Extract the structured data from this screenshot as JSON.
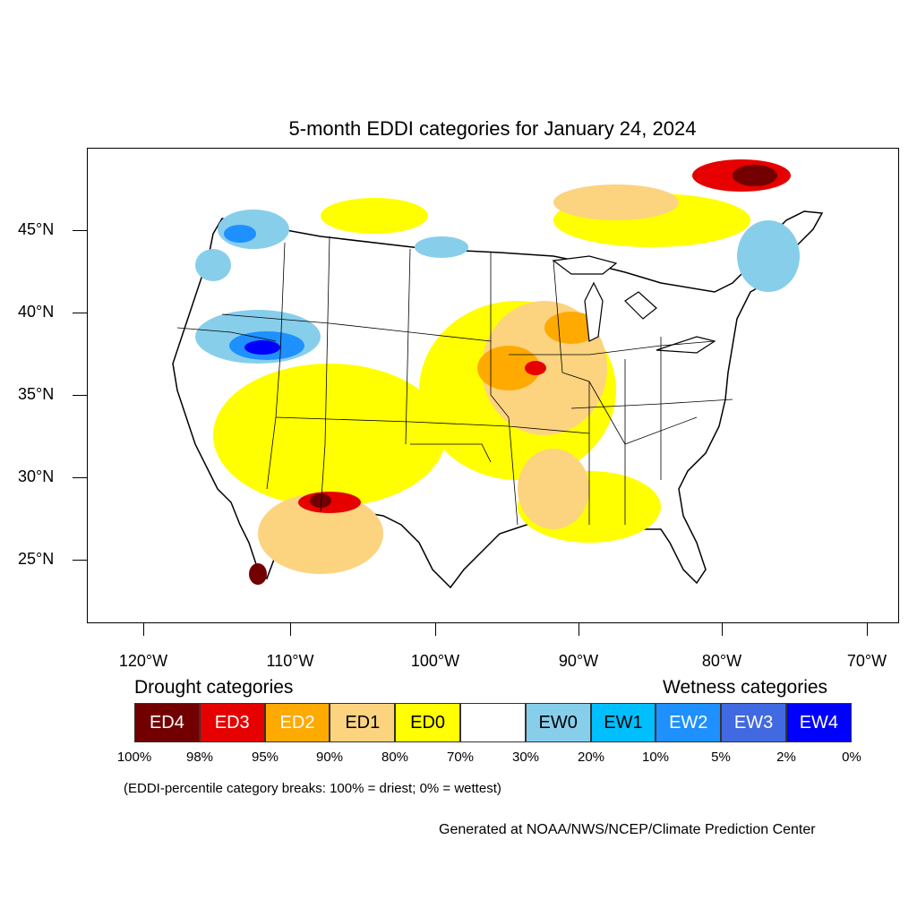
{
  "title": "5-month EDDI categories for January 24, 2024",
  "axes": {
    "lat_labels": [
      "45°N",
      "40°N",
      "35°N",
      "30°N",
      "25°N"
    ],
    "lon_labels": [
      "120°W",
      "110°W",
      "100°W",
      "90°W",
      "80°W",
      "70°W"
    ]
  },
  "legend": {
    "drought_heading": "Drought categories",
    "wetness_heading": "Wetness categories",
    "categories": [
      {
        "label": "ED4",
        "color": "#730000",
        "text_color": "#ffffff"
      },
      {
        "label": "ED3",
        "color": "#e60000",
        "text_color": "#ffffff"
      },
      {
        "label": "ED2",
        "color": "#ffaa00",
        "text_color": "#ffffff"
      },
      {
        "label": "ED1",
        "color": "#fcd37f",
        "text_color": "#000000"
      },
      {
        "label": "ED0",
        "color": "#ffff00",
        "text_color": "#000000"
      },
      {
        "label": "",
        "color": "#ffffff",
        "text_color": "#000000"
      },
      {
        "label": "EW0",
        "color": "#87ceeb",
        "text_color": "#000000"
      },
      {
        "label": "EW1",
        "color": "#00bfff",
        "text_color": "#000000"
      },
      {
        "label": "EW2",
        "color": "#1e90ff",
        "text_color": "#ffffff"
      },
      {
        "label": "EW3",
        "color": "#4169e1",
        "text_color": "#ffffff"
      },
      {
        "label": "EW4",
        "color": "#0000ff",
        "text_color": "#ffffff"
      }
    ],
    "breaks": [
      "100%",
      "98%",
      "95%",
      "90%",
      "80%",
      "70%",
      "30%",
      "20%",
      "10%",
      "5%",
      "2%",
      "0%"
    ]
  },
  "note": "(EDDI-percentile category breaks: 100% = driest; 0% = wettest)",
  "credit": "Generated at NOAA/NWS/NCEP/Climate Prediction Center"
}
